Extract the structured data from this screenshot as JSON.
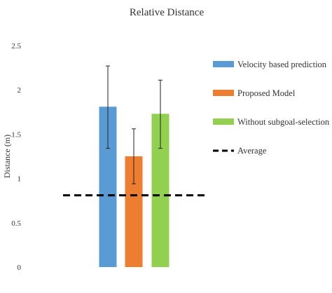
{
  "chart_data": {
    "type": "bar",
    "title": "Relative Distance",
    "xlabel": "",
    "ylabel": "Distance (m)",
    "ylim": [
      0,
      2.5
    ],
    "yticks": [
      "0",
      "0.5",
      "1",
      "1.5",
      "2",
      "2.5"
    ],
    "grid": false,
    "legend_position": "right",
    "series": [
      {
        "name": "Velocity based prediction",
        "value": 1.81,
        "error_low": 1.34,
        "error_high": 2.27,
        "color": "#5B9BD5"
      },
      {
        "name": "Proposed Model",
        "value": 1.25,
        "error_low": 0.94,
        "error_high": 1.56,
        "color": "#ED7D31"
      },
      {
        "name": "Without subgoal-selection",
        "value": 1.73,
        "error_low": 1.34,
        "error_high": 2.11,
        "color": "#92D050"
      }
    ],
    "reference_lines": [
      {
        "name": "Average",
        "value": 0.81,
        "style": "dashed",
        "color": "#000000"
      }
    ]
  }
}
